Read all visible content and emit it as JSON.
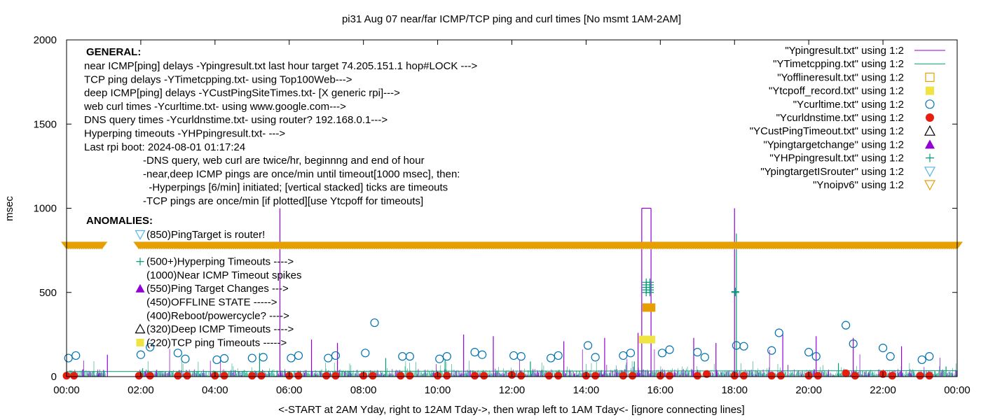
{
  "chart_data": {
    "type": "scatter",
    "title": "pi31 Aug 07  near/far ICMP/TCP ping and curl times [No msmt 1AM-2AM]",
    "xlabel": "<-START at 2AM Yday, right to 12AM Tday->, then wrap left to 1AM Tday<- [ignore connecting lines]",
    "ylabel": "msec",
    "xlim": [
      0,
      24
    ],
    "ylim": [
      0,
      2000
    ],
    "x_ticks": [
      "00:00",
      "02:00",
      "04:00",
      "06:00",
      "08:00",
      "10:00",
      "12:00",
      "14:00",
      "16:00",
      "18:00",
      "20:00",
      "22:00",
      "00:00"
    ],
    "y_ticks": [
      0,
      500,
      1000,
      1500,
      2000
    ],
    "grid": false,
    "legend_position": "top-right",
    "colors": {
      "purple": "#9400d3",
      "teal": "#009e73",
      "blue": "#0072b2",
      "orange": "#e69f00",
      "yellow": "#f0e442",
      "red": "#e51e10",
      "cyan": "#56b4e9"
    },
    "series": [
      {
        "name": "\"Ypingresult.txt\" using 1:2",
        "marker": "line",
        "color": "#9400d3",
        "points": [
          [
            15.5,
            1000
          ],
          [
            15.75,
            1000
          ],
          [
            18,
            1000
          ],
          [
            5.75,
            1000
          ],
          [
            6.6,
            220
          ],
          [
            7.3,
            200
          ],
          [
            10.7,
            250
          ],
          [
            11.5,
            240
          ],
          [
            13.4,
            210
          ],
          [
            14.5,
            230
          ],
          [
            15.4,
            260
          ],
          [
            16.9,
            230
          ],
          [
            17.5,
            200
          ],
          [
            19.3,
            260
          ],
          [
            20.2,
            240
          ],
          [
            21.2,
            230
          ],
          [
            22.5,
            180
          ],
          [
            1.1,
            130
          ]
        ]
      },
      {
        "name": "\"YTimetcpping.txt\" using 1:2",
        "marker": "line",
        "color": "#009e73",
        "points": [
          [
            18.05,
            850
          ],
          [
            2.05,
            50
          ],
          [
            5.2,
            140
          ],
          [
            8.6,
            110
          ],
          [
            10.2,
            100
          ],
          [
            12.5,
            90
          ],
          [
            15.3,
            90
          ],
          [
            20.8,
            80
          ],
          [
            23.7,
            60
          ]
        ]
      },
      {
        "name": "\"Yofflineresult.txt\" using 1:2",
        "marker": "open-square",
        "color": "#e69f00",
        "points": []
      },
      {
        "name": "\"Ytcpoff_record.txt\" using 1:2",
        "marker": "filled-square",
        "color": "#f0e442",
        "points": [
          [
            15.52,
            220
          ],
          [
            15.6,
            220
          ],
          [
            15.68,
            220
          ],
          [
            15.76,
            220
          ]
        ]
      },
      {
        "name": "\"Ycurltime.txt\" using 1:2",
        "marker": "open-circle",
        "color": "#0072b2",
        "points": [
          [
            0.05,
            110
          ],
          [
            0.25,
            125
          ],
          [
            2.0,
            130
          ],
          [
            2.25,
            175
          ],
          [
            3.0,
            140
          ],
          [
            3.2,
            105
          ],
          [
            4.05,
            100
          ],
          [
            4.25,
            108
          ],
          [
            5.0,
            110
          ],
          [
            5.3,
            115
          ],
          [
            6.05,
            110
          ],
          [
            6.25,
            125
          ],
          [
            7.05,
            110
          ],
          [
            7.25,
            125
          ],
          [
            8.05,
            140
          ],
          [
            8.3,
            320
          ],
          [
            9.05,
            120
          ],
          [
            9.25,
            120
          ],
          [
            10.05,
            105
          ],
          [
            10.25,
            120
          ],
          [
            11.0,
            145
          ],
          [
            11.2,
            130
          ],
          [
            12.05,
            125
          ],
          [
            12.25,
            120
          ],
          [
            13.05,
            110
          ],
          [
            13.25,
            125
          ],
          [
            14.05,
            185
          ],
          [
            14.25,
            115
          ],
          [
            15.0,
            125
          ],
          [
            15.2,
            140
          ],
          [
            16.05,
            140
          ],
          [
            16.25,
            160
          ],
          [
            17.0,
            145
          ],
          [
            17.2,
            115
          ],
          [
            18.05,
            185
          ],
          [
            18.25,
            180
          ],
          [
            19.0,
            155
          ],
          [
            19.2,
            260
          ],
          [
            20.0,
            145
          ],
          [
            20.2,
            120
          ],
          [
            21.0,
            305
          ],
          [
            21.2,
            195
          ],
          [
            22.0,
            170
          ],
          [
            22.2,
            120
          ],
          [
            23.05,
            100
          ],
          [
            23.25,
            120
          ]
        ]
      },
      {
        "name": "\"Ycurldnstime.txt\" using 1:2",
        "marker": "filled-circle",
        "color": "#e51e10",
        "points": [
          [
            0.0,
            5
          ],
          [
            0.2,
            5
          ],
          [
            1.95,
            5
          ],
          [
            2.25,
            5
          ],
          [
            3.0,
            5
          ],
          [
            3.25,
            5
          ],
          [
            4.0,
            5
          ],
          [
            4.25,
            5
          ],
          [
            5.0,
            5
          ],
          [
            5.25,
            5
          ],
          [
            6.0,
            5
          ],
          [
            6.25,
            5
          ],
          [
            7.0,
            5
          ],
          [
            7.25,
            5
          ],
          [
            8.0,
            5
          ],
          [
            8.25,
            5
          ],
          [
            9.0,
            5
          ],
          [
            9.25,
            5
          ],
          [
            10.0,
            5
          ],
          [
            10.25,
            5
          ],
          [
            11.0,
            5
          ],
          [
            11.25,
            5
          ],
          [
            12.0,
            10
          ],
          [
            12.25,
            5
          ],
          [
            13.0,
            5
          ],
          [
            13.25,
            5
          ],
          [
            14.0,
            5
          ],
          [
            14.25,
            5
          ],
          [
            15.0,
            5
          ],
          [
            15.25,
            5
          ],
          [
            16.0,
            5
          ],
          [
            16.25,
            5
          ],
          [
            17.0,
            5
          ],
          [
            17.25,
            15
          ],
          [
            18.0,
            5
          ],
          [
            18.25,
            5
          ],
          [
            19.0,
            5
          ],
          [
            19.25,
            5
          ],
          [
            20.0,
            5
          ],
          [
            20.25,
            5
          ],
          [
            21.0,
            20
          ],
          [
            21.25,
            5
          ],
          [
            22.0,
            15
          ],
          [
            22.25,
            5
          ],
          [
            23.0,
            5
          ],
          [
            23.25,
            5
          ]
        ]
      },
      {
        "name": "\"YCustPingTimeout.txt\" using 1:2",
        "marker": "open-triangle",
        "color": "#000000",
        "points": []
      },
      {
        "name": "\"Ypingtargetchange\" using 1:2",
        "marker": "filled-triangle",
        "color": "#9400d3",
        "points": []
      },
      {
        "name": "\"YHPpingresult.txt\" using 1:2",
        "marker": "plus",
        "color": "#009e73",
        "points": [
          [
            15.62,
            500
          ],
          [
            15.62,
            515
          ],
          [
            15.62,
            530
          ],
          [
            15.62,
            545
          ],
          [
            15.62,
            560
          ],
          [
            15.72,
            500
          ],
          [
            15.72,
            515
          ],
          [
            15.72,
            530
          ],
          [
            15.72,
            545
          ],
          [
            15.72,
            560
          ],
          [
            18.02,
            500
          ],
          [
            18.02,
            505
          ]
        ]
      },
      {
        "name": "\"YpingtargetISrouter\" using 1:2",
        "marker": "open-inverted-triangle",
        "color": "#56b4e9",
        "points": []
      },
      {
        "name": "\"Ynoipv6\" using 1:2",
        "marker": "open-inverted-triangle",
        "color": "#e69f00",
        "points": [
          [
            0.0,
            780
          ],
          [
            1.0,
            780
          ],
          [
            2.0,
            780
          ],
          [
            3.0,
            780
          ],
          [
            4.0,
            780
          ],
          [
            5.0,
            780
          ],
          [
            6.0,
            780
          ],
          [
            7.0,
            780
          ],
          [
            8.0,
            780
          ],
          [
            9.0,
            780
          ],
          [
            10.0,
            780
          ],
          [
            11.0,
            780
          ],
          [
            12.0,
            780
          ],
          [
            13.0,
            780
          ],
          [
            14.0,
            780
          ],
          [
            15.0,
            780
          ],
          [
            16.0,
            780
          ],
          [
            17.0,
            780
          ],
          [
            18.0,
            780
          ],
          [
            19.0,
            780
          ],
          [
            20.0,
            780
          ],
          [
            21.0,
            780
          ],
          [
            22.0,
            780
          ],
          [
            23.0,
            780
          ],
          [
            24.0,
            780
          ]
        ]
      }
    ],
    "annotations": {
      "general_heading": "GENERAL:",
      "general_lines": [
        "near ICMP[ping] delays -Ypingresult.txt last hour target 74.205.151.1 hop#LOCK --->",
        "TCP ping delays -YTimetcpping.txt- using Top100Web--->",
        "deep ICMP[ping] delays -YCustPingSiteTimes.txt- [X generic rpi]--->",
        "web curl times -Ycurltime.txt- using www.google.com--->",
        "DNS query times -Ycurldnstime.txt- using router? 192.168.0.1--->",
        "Hyperping timeouts -YHPpingresult.txt- --->",
        "Last rpi boot: 2024-08-01 01:17:24"
      ],
      "notes": [
        "-DNS query, web curl are twice/hr, beginnng and end of hour",
        "-near,deep ICMP pings are once/min until timeout[1000 msec], then:",
        "  -Hyperpings [6/min] initiated; [vertical stacked] ticks are timeouts",
        "-TCP pings are once/min [if plotted][use Ytcpoff for timeouts]"
      ],
      "anomalies_heading": "ANOMALIES:",
      "anomalies": [
        {
          "text": "(850)PingTarget is router!",
          "marker": "open-inverted-triangle"
        },
        {
          "text": "(500+)Hyperping Timeouts ---->",
          "marker": "plus"
        },
        {
          "text": "(1000)Near ICMP Timeout spikes",
          "marker": "none"
        },
        {
          "text": "(550)Ping Target Changes --->",
          "marker": "filled-triangle"
        },
        {
          "text": "(450)OFFLINE STATE ----->",
          "marker": "none"
        },
        {
          "text": "(400)Reboot/powercycle? ---->",
          "marker": "none"
        },
        {
          "text": "(320)Deep ICMP Timeouts ---->",
          "marker": "open-triangle"
        },
        {
          "text": "(220)TCP ping Timeouts ----->",
          "marker": "filled-square"
        }
      ]
    }
  }
}
